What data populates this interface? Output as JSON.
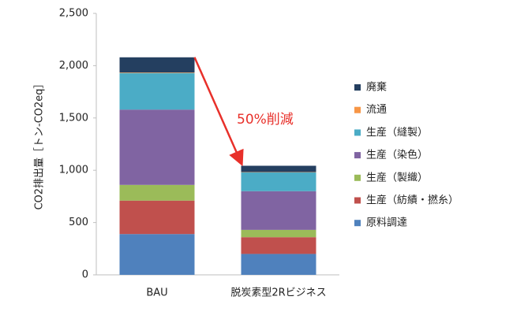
{
  "chart_data": {
    "type": "stacked_bar",
    "y_label": "CO2排出量［トン-CO2eq］",
    "annotation": "50%削減",
    "categories": [
      "BAU",
      "脱炭素型2Rビジネス"
    ],
    "series": [
      {
        "name": "原料調達",
        "color": "#4f81bd",
        "values": [
          390,
          200
        ]
      },
      {
        "name": "生産（紡績・撚糸）",
        "color": "#c0504d",
        "values": [
          320,
          160
        ]
      },
      {
        "name": "生産（製織）",
        "color": "#9bbb59",
        "values": [
          150,
          70
        ]
      },
      {
        "name": "生産（染色）",
        "color": "#8064a2",
        "values": [
          720,
          370
        ]
      },
      {
        "name": "生産（縫製）",
        "color": "#4bacc6",
        "values": [
          350,
          180
        ]
      },
      {
        "name": "流通",
        "color": "#f79646",
        "values": [
          5,
          3
        ]
      },
      {
        "name": "廃棄",
        "color": "#243f60",
        "values": [
          145,
          60
        ]
      }
    ],
    "ylim": [
      0,
      2500
    ],
    "yticks": [
      0,
      500,
      {
        "value": 1000,
        "label": "1,000"
      },
      {
        "value": 1500,
        "label": "1,500"
      },
      {
        "value": 2000,
        "label": "2,000"
      },
      {
        "value": 2500,
        "label": "2,500"
      }
    ],
    "legend_position": "right"
  }
}
